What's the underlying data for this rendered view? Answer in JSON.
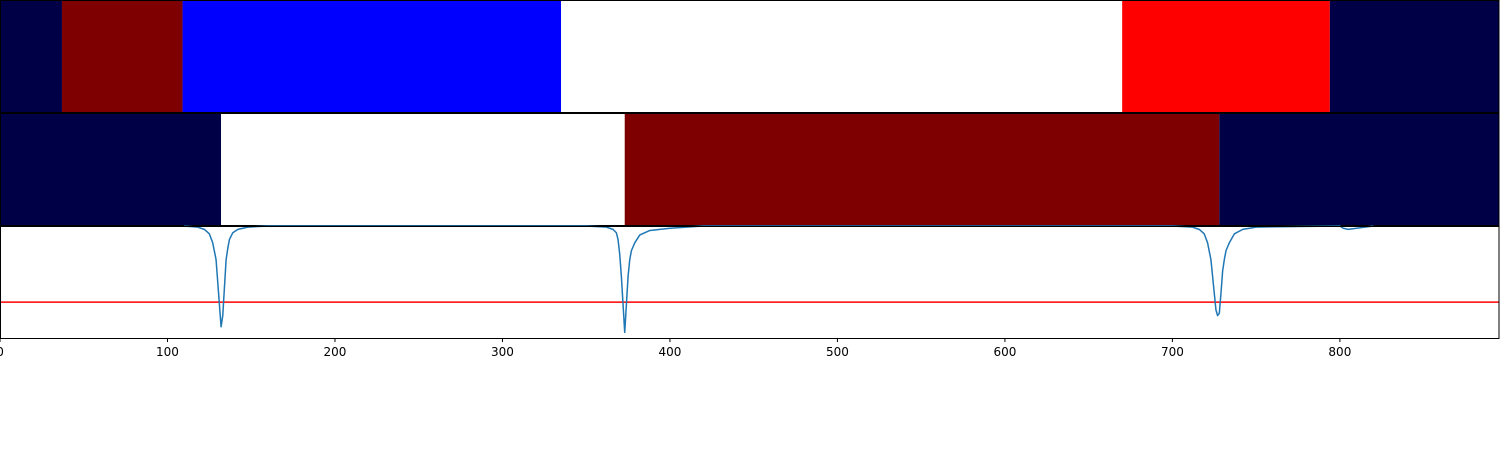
{
  "chart_data": {
    "type": "composite",
    "x_range": [
      0,
      895
    ],
    "x_ticks": [
      0,
      100,
      200,
      300,
      400,
      500,
      600,
      700,
      800
    ],
    "grid": false,
    "panels": [
      {
        "type": "segment-bar",
        "segments": [
          {
            "start": 0,
            "end": 37,
            "color": "#000046"
          },
          {
            "start": 37,
            "end": 109,
            "color": "#7f0000"
          },
          {
            "start": 109,
            "end": 335,
            "color": "#0000ff"
          },
          {
            "start": 335,
            "end": 670,
            "color": "#ffffff"
          },
          {
            "start": 670,
            "end": 794,
            "color": "#ff0000"
          },
          {
            "start": 794,
            "end": 895,
            "color": "#000046"
          }
        ]
      },
      {
        "type": "segment-bar",
        "segments": [
          {
            "start": 0,
            "end": 132,
            "color": "#000046"
          },
          {
            "start": 132,
            "end": 373,
            "color": "#ffffff"
          },
          {
            "start": 373,
            "end": 728,
            "color": "#7f0000"
          },
          {
            "start": 728,
            "end": 895,
            "color": "#000046"
          }
        ]
      },
      {
        "type": "line",
        "ylim": [
          -1.0,
          0.0
        ],
        "series": [
          {
            "color": "#1f77b4",
            "x": [
              110,
              118,
              122,
              125,
              127,
              129,
              130,
              131,
              132,
              133,
              134,
              135,
              136,
              137,
              139,
              142,
              148,
              160,
              350,
              362,
              366,
              368,
              369,
              370,
              371,
              372,
              373,
              374,
              375,
              376,
              377,
              379,
              382,
              388,
              400,
              420,
              700,
              712,
              716,
              719,
              721,
              723,
              724,
              725,
              726,
              727,
              728,
              729,
              730,
              731,
              732,
              734,
              737,
              742,
              750,
              800,
              802,
              805,
              810,
              815,
              820
            ],
            "y": [
              0,
              -0.01,
              -0.03,
              -0.07,
              -0.15,
              -0.3,
              -0.5,
              -0.7,
              -0.9,
              -0.8,
              -0.55,
              -0.3,
              -0.2,
              -0.12,
              -0.06,
              -0.03,
              -0.01,
              0,
              0,
              -0.01,
              -0.03,
              -0.06,
              -0.12,
              -0.25,
              -0.45,
              -0.7,
              -0.95,
              -0.7,
              -0.45,
              -0.3,
              -0.22,
              -0.15,
              -0.08,
              -0.04,
              -0.02,
              0,
              0,
              -0.01,
              -0.03,
              -0.07,
              -0.15,
              -0.3,
              -0.45,
              -0.6,
              -0.75,
              -0.8,
              -0.78,
              -0.6,
              -0.4,
              -0.3,
              -0.22,
              -0.15,
              -0.07,
              -0.03,
              -0.01,
              0,
              -0.02,
              -0.03,
              -0.02,
              -0.01,
              0
            ]
          }
        ],
        "hlines": [
          {
            "y": -0.68,
            "color": "#ff0000"
          }
        ]
      }
    ]
  }
}
